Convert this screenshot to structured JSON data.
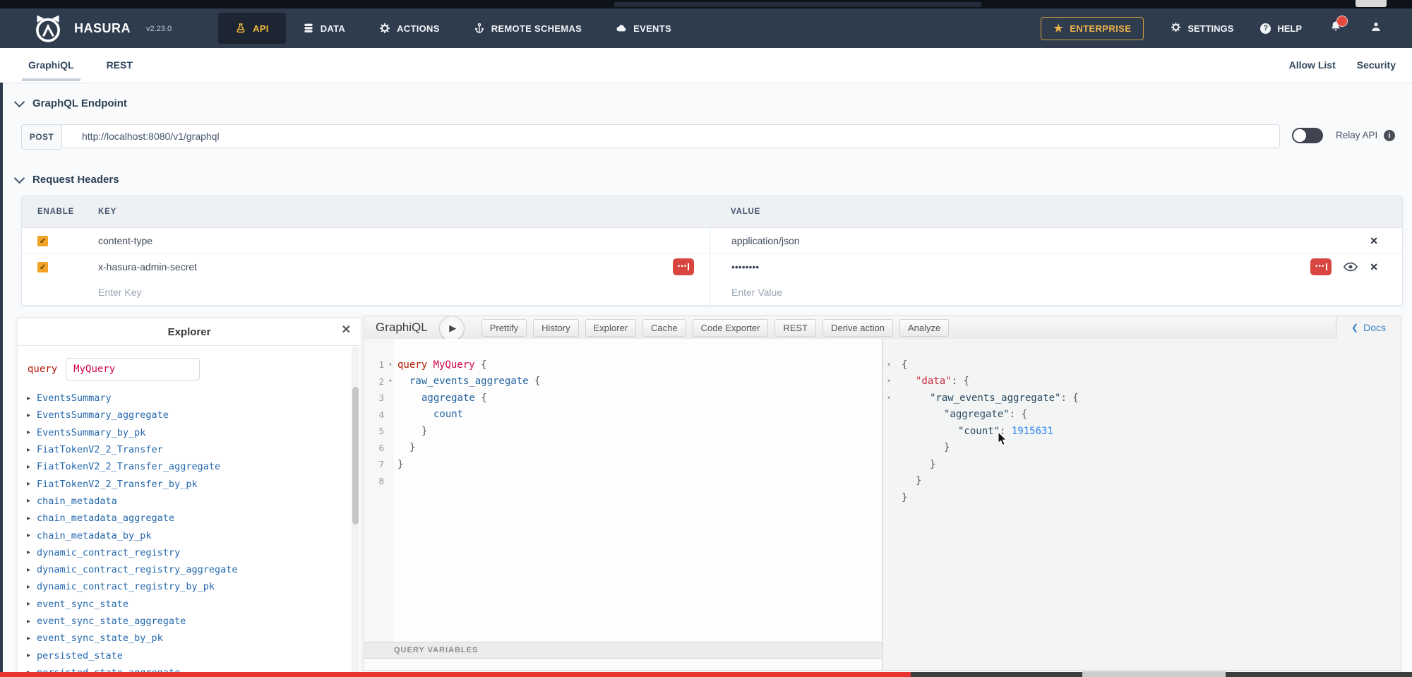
{
  "navbar": {
    "brand": "HASURA",
    "version": "v2.23.0",
    "tabs": [
      {
        "label": "API",
        "icon": "flask-icon",
        "active": true
      },
      {
        "label": "DATA",
        "icon": "database-icon",
        "active": false
      },
      {
        "label": "ACTIONS",
        "icon": "gear-icon",
        "active": false
      },
      {
        "label": "REMOTE SCHEMAS",
        "icon": "anchor-icon",
        "active": false
      },
      {
        "label": "EVENTS",
        "icon": "cloud-icon",
        "active": false
      }
    ],
    "enterprise_label": "ENTERPRISE",
    "settings_label": "SETTINGS",
    "help_label": "HELP"
  },
  "subnav": {
    "tabs": [
      {
        "label": "GraphiQL",
        "active": true
      },
      {
        "label": "REST",
        "active": false
      }
    ],
    "right_links": [
      "Allow List",
      "Security"
    ]
  },
  "endpoint": {
    "title": "GraphQL Endpoint",
    "method": "POST",
    "url": "http://localhost:8080/v1/graphql",
    "relay_label": "Relay API",
    "relay_enabled": false
  },
  "request_headers": {
    "title": "Request Headers",
    "columns": [
      "ENABLE",
      "KEY",
      "VALUE"
    ],
    "rows": [
      {
        "enabled": true,
        "key": "content-type",
        "value": "application/json",
        "key_badge": false,
        "value_badge": false,
        "eye": false
      },
      {
        "enabled": true,
        "key": "x-hasura-admin-secret",
        "value": "••••••••",
        "key_badge": true,
        "value_badge": true,
        "eye": true
      }
    ],
    "key_placeholder": "Enter Key",
    "value_placeholder": "Enter Value"
  },
  "explorer": {
    "title": "Explorer",
    "query_keyword": "query",
    "query_name": "MyQuery",
    "fields": [
      "EventsSummary",
      "EventsSummary_aggregate",
      "EventsSummary_by_pk",
      "FiatTokenV2_2_Transfer",
      "FiatTokenV2_2_Transfer_aggregate",
      "FiatTokenV2_2_Transfer_by_pk",
      "chain_metadata",
      "chain_metadata_aggregate",
      "chain_metadata_by_pk",
      "dynamic_contract_registry",
      "dynamic_contract_registry_aggregate",
      "dynamic_contract_registry_by_pk",
      "event_sync_state",
      "event_sync_state_aggregate",
      "event_sync_state_by_pk",
      "persisted_state",
      "persisted_state_aggregate"
    ]
  },
  "graphiql": {
    "title": "GraphiQL",
    "buttons": [
      "Prettify",
      "History",
      "Explorer",
      "Cache",
      "Code Exporter",
      "REST",
      "Derive action",
      "Analyze"
    ],
    "docs_label": "Docs",
    "variables_label": "QUERY VARIABLES",
    "query_lines": [
      {
        "num": "1",
        "fold": true,
        "indent": 0,
        "tokens": [
          [
            "kw",
            "query"
          ],
          [
            "pl",
            " "
          ],
          [
            "def",
            "MyQuery"
          ],
          [
            "pu",
            " {"
          ]
        ]
      },
      {
        "num": "2",
        "fold": true,
        "indent": 1,
        "tokens": [
          [
            "prop",
            "raw_events_aggregate"
          ],
          [
            "pu",
            " {"
          ]
        ]
      },
      {
        "num": "3",
        "fold": false,
        "indent": 2,
        "tokens": [
          [
            "prop",
            "aggregate"
          ],
          [
            "pu",
            " {"
          ]
        ]
      },
      {
        "num": "4",
        "fold": false,
        "indent": 3,
        "tokens": [
          [
            "prop",
            "count"
          ]
        ]
      },
      {
        "num": "5",
        "fold": false,
        "indent": 2,
        "tokens": [
          [
            "pu",
            "}"
          ]
        ]
      },
      {
        "num": "6",
        "fold": false,
        "indent": 1,
        "tokens": [
          [
            "pu",
            "}"
          ]
        ]
      },
      {
        "num": "7",
        "fold": false,
        "indent": 0,
        "tokens": [
          [
            "pu",
            "}"
          ]
        ]
      },
      {
        "num": "8",
        "fold": false,
        "indent": 0,
        "tokens": []
      }
    ],
    "response_lines": [
      {
        "fold": true,
        "indent": 0,
        "tokens": [
          [
            "pu",
            "{"
          ]
        ]
      },
      {
        "fold": true,
        "indent": 1,
        "tokens": [
          [
            "rkey",
            "\"data\""
          ],
          [
            "pu",
            ": {"
          ]
        ]
      },
      {
        "fold": true,
        "indent": 2,
        "tokens": [
          [
            "key",
            "\"raw_events_aggregate\""
          ],
          [
            "pu",
            ": {"
          ]
        ]
      },
      {
        "fold": false,
        "indent": 3,
        "tokens": [
          [
            "key",
            "\"aggregate\""
          ],
          [
            "pu",
            ": {"
          ]
        ]
      },
      {
        "fold": false,
        "indent": 4,
        "tokens": [
          [
            "key",
            "\"count\""
          ],
          [
            "pu",
            ": "
          ],
          [
            "num",
            "1915631"
          ]
        ]
      },
      {
        "fold": false,
        "indent": 3,
        "tokens": [
          [
            "pu",
            "}"
          ]
        ]
      },
      {
        "fold": false,
        "indent": 2,
        "tokens": [
          [
            "pu",
            "}"
          ]
        ]
      },
      {
        "fold": false,
        "indent": 1,
        "tokens": [
          [
            "pu",
            "}"
          ]
        ]
      },
      {
        "fold": false,
        "indent": 0,
        "tokens": [
          [
            "pu",
            "}"
          ]
        ]
      }
    ]
  },
  "colors": {
    "navbar_bg": "#2e3c4e",
    "accent_amber": "#f3b93c",
    "checkbox_amber": "#f0a326",
    "secret_red": "#d9463f",
    "progress_red": "#e8342c",
    "link_blue": "#3a85c8",
    "code_keyword": "#B11A04",
    "code_def": "#D2054E",
    "code_property": "#1F61A0",
    "code_number": "#2882F9"
  }
}
